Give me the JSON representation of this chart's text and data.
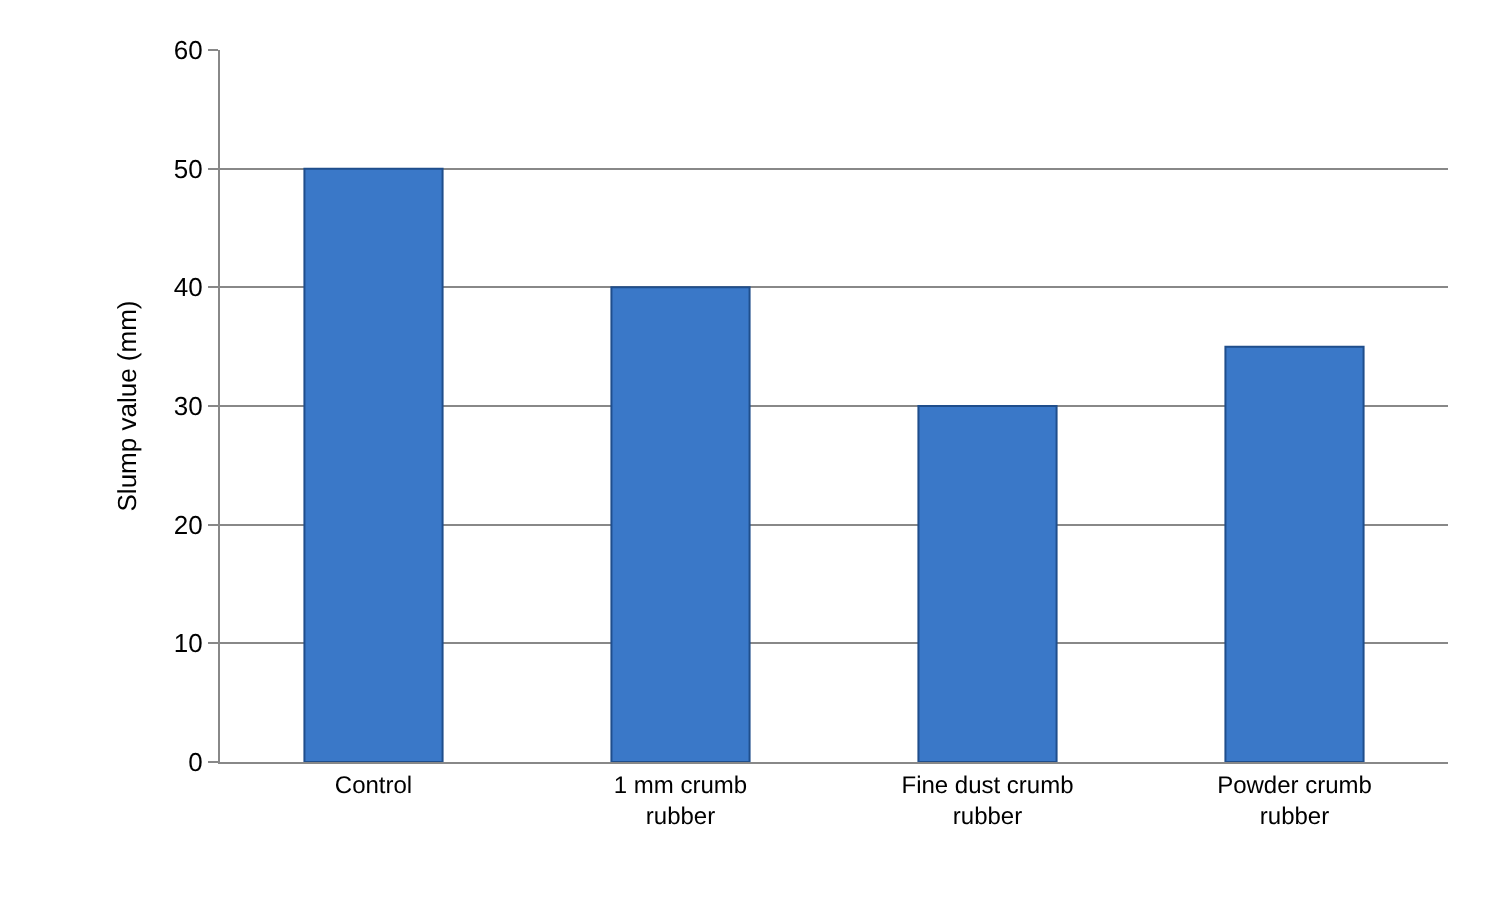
{
  "chart_data": {
    "type": "bar",
    "ylabel": "Slump value (mm)",
    "categories": [
      "Control",
      "1 mm crumb rubber",
      "Fine dust crumb rubber",
      "Powder crumb rubber"
    ],
    "values": [
      50,
      40,
      30,
      35
    ],
    "color": "#3a78c8",
    "ylim": [
      0,
      60
    ],
    "yticks": [
      0,
      10,
      20,
      30,
      40,
      50,
      60
    ],
    "grid": "y"
  }
}
